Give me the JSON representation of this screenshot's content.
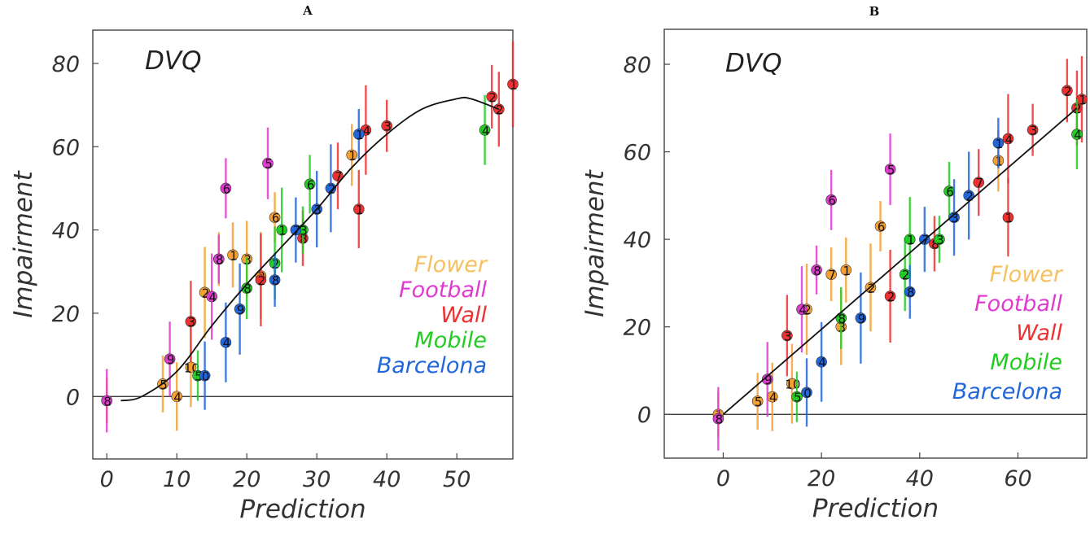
{
  "figure": {
    "panels": [
      {
        "letter": "A",
        "method": "DVQ",
        "xlabel": "Prediction",
        "ylabel": "Impairment"
      },
      {
        "letter": "B",
        "method": "DVQ",
        "xlabel": "Prediction",
        "ylabel": "Impairment"
      }
    ],
    "legend": [
      {
        "name": "Flower",
        "color": "#f5c060"
      },
      {
        "name": "Football",
        "color": "#e03ad0"
      },
      {
        "name": "Wall",
        "color": "#ef3030"
      },
      {
        "name": "Mobile",
        "color": "#22cc22"
      },
      {
        "name": "Barcelona",
        "color": "#2266dd"
      }
    ]
  },
  "chart_data": [
    {
      "type": "scatter",
      "panel": "A",
      "title": "DVQ",
      "xlabel": "Prediction",
      "ylabel": "Impairment",
      "xlim": [
        -2,
        58
      ],
      "ylim": [
        -15,
        88
      ],
      "xticks": [
        0,
        10,
        20,
        30,
        40,
        50
      ],
      "yticks": [
        0,
        20,
        40,
        60,
        80
      ],
      "grid": false,
      "legend_position": "right",
      "reference_line_y": 0,
      "fit_curve": {
        "x": [
          2,
          5,
          10,
          15,
          20,
          25,
          30,
          35,
          40,
          45,
          50,
          52,
          56
        ],
        "y": [
          -1,
          0,
          6,
          17,
          27,
          36,
          45,
          55,
          63,
          69,
          71.5,
          71.5,
          69
        ]
      },
      "series": [
        {
          "name": "Flower",
          "color": "#f5a030",
          "points": [
            {
              "x": 0,
              "y": -1,
              "label": "1"
            },
            {
              "x": 8,
              "y": 3,
              "label": "5"
            },
            {
              "x": 10,
              "y": 0,
              "label": "4"
            },
            {
              "x": 12,
              "y": 7,
              "label": "10"
            },
            {
              "x": 14,
              "y": 25,
              "label": "2"
            },
            {
              "x": 16,
              "y": 33,
              "label": "7"
            },
            {
              "x": 18,
              "y": 34,
              "label": "1"
            },
            {
              "x": 20,
              "y": 33,
              "label": "3"
            },
            {
              "x": 22,
              "y": 29,
              "label": "2"
            },
            {
              "x": 24,
              "y": 43,
              "label": "6"
            },
            {
              "x": 35,
              "y": 58,
              "label": "1"
            }
          ]
        },
        {
          "name": "Football",
          "color": "#e03ad0",
          "points": [
            {
              "x": 0,
              "y": -1,
              "label": "8"
            },
            {
              "x": 9,
              "y": 9,
              "label": "9"
            },
            {
              "x": 15,
              "y": 24,
              "label": "4"
            },
            {
              "x": 16,
              "y": 33,
              "label": "8"
            },
            {
              "x": 17,
              "y": 50,
              "label": "6"
            },
            {
              "x": 23,
              "y": 56,
              "label": "5"
            }
          ]
        },
        {
          "name": "Wall",
          "color": "#ef3030",
          "points": [
            {
              "x": 12,
              "y": 18,
              "label": "3"
            },
            {
              "x": 22,
              "y": 28,
              "label": "2"
            },
            {
              "x": 28,
              "y": 38,
              "label": "8"
            },
            {
              "x": 33,
              "y": 53,
              "label": "7"
            },
            {
              "x": 36,
              "y": 45,
              "label": "1"
            },
            {
              "x": 37,
              "y": 64,
              "label": "4"
            },
            {
              "x": 40,
              "y": 65,
              "label": "3"
            },
            {
              "x": 55,
              "y": 72,
              "label": "2"
            },
            {
              "x": 56,
              "y": 69,
              "label": "2"
            },
            {
              "x": 58,
              "y": 75,
              "label": "1"
            }
          ]
        },
        {
          "name": "Mobile",
          "color": "#22cc22",
          "points": [
            {
              "x": 13,
              "y": 5,
              "label": "5"
            },
            {
              "x": 20,
              "y": 26,
              "label": "8"
            },
            {
              "x": 24,
              "y": 32,
              "label": "2"
            },
            {
              "x": 25,
              "y": 40,
              "label": "1"
            },
            {
              "x": 28,
              "y": 40,
              "label": "3"
            },
            {
              "x": 29,
              "y": 51,
              "label": "6"
            },
            {
              "x": 54,
              "y": 64,
              "label": "4"
            }
          ]
        },
        {
          "name": "Barcelona",
          "color": "#2266dd",
          "points": [
            {
              "x": 14,
              "y": 5,
              "label": "0"
            },
            {
              "x": 17,
              "y": 13,
              "label": "4"
            },
            {
              "x": 19,
              "y": 21,
              "label": "9"
            },
            {
              "x": 24,
              "y": 28,
              "label": "8"
            },
            {
              "x": 27,
              "y": 40,
              "label": "7"
            },
            {
              "x": 30,
              "y": 45,
              "label": "3"
            },
            {
              "x": 32,
              "y": 50,
              "label": "2"
            },
            {
              "x": 36,
              "y": 63,
              "label": "1"
            }
          ]
        }
      ]
    },
    {
      "type": "scatter",
      "panel": "B",
      "title": "DVQ",
      "xlabel": "Prediction",
      "ylabel": "Impairment",
      "xlim": [
        -12,
        74
      ],
      "ylim": [
        -10,
        88
      ],
      "xticks": [
        0,
        20,
        40,
        60
      ],
      "yticks": [
        0,
        20,
        40,
        60,
        80
      ],
      "grid": false,
      "legend_position": "right",
      "reference_line_y": 0,
      "fit_curve": {
        "x": [
          0,
          72
        ],
        "y": [
          0,
          70
        ]
      },
      "series": [
        {
          "name": "Flower",
          "color": "#f5a030",
          "points": [
            {
              "x": -1,
              "y": 0,
              "label": "1"
            },
            {
              "x": 7,
              "y": 3,
              "label": "5"
            },
            {
              "x": 10,
              "y": 4,
              "label": "4"
            },
            {
              "x": 14,
              "y": 7,
              "label": "10"
            },
            {
              "x": 17,
              "y": 24,
              "label": "2"
            },
            {
              "x": 22,
              "y": 32,
              "label": "7"
            },
            {
              "x": 25,
              "y": 33,
              "label": "1"
            },
            {
              "x": 24,
              "y": 20,
              "label": "3"
            },
            {
              "x": 30,
              "y": 29,
              "label": "2"
            },
            {
              "x": 32,
              "y": 43,
              "label": "6"
            },
            {
              "x": 56,
              "y": 58,
              "label": "1"
            }
          ]
        },
        {
          "name": "Football",
          "color": "#e03ad0",
          "points": [
            {
              "x": -1,
              "y": -1,
              "label": "8"
            },
            {
              "x": 9,
              "y": 8,
              "label": "9"
            },
            {
              "x": 16,
              "y": 24,
              "label": "4"
            },
            {
              "x": 19,
              "y": 33,
              "label": "8"
            },
            {
              "x": 22,
              "y": 49,
              "label": "6"
            },
            {
              "x": 34,
              "y": 56,
              "label": "5"
            }
          ]
        },
        {
          "name": "Wall",
          "color": "#ef3030",
          "points": [
            {
              "x": 13,
              "y": 18,
              "label": "3"
            },
            {
              "x": 34,
              "y": 27,
              "label": "2"
            },
            {
              "x": 43,
              "y": 39,
              "label": "8"
            },
            {
              "x": 52,
              "y": 53,
              "label": "7"
            },
            {
              "x": 58,
              "y": 45,
              "label": "1"
            },
            {
              "x": 58,
              "y": 63,
              "label": "4"
            },
            {
              "x": 63,
              "y": 65,
              "label": "3"
            },
            {
              "x": 70,
              "y": 74,
              "label": "2"
            },
            {
              "x": 72,
              "y": 70,
              "label": "2"
            },
            {
              "x": 73,
              "y": 72,
              "label": "1"
            }
          ]
        },
        {
          "name": "Mobile",
          "color": "#22cc22",
          "points": [
            {
              "x": 15,
              "y": 4,
              "label": "5"
            },
            {
              "x": 24,
              "y": 22,
              "label": "8"
            },
            {
              "x": 37,
              "y": 32,
              "label": "2"
            },
            {
              "x": 38,
              "y": 40,
              "label": "1"
            },
            {
              "x": 44,
              "y": 40,
              "label": "3"
            },
            {
              "x": 46,
              "y": 51,
              "label": "6"
            },
            {
              "x": 72,
              "y": 64,
              "label": "4"
            }
          ]
        },
        {
          "name": "Barcelona",
          "color": "#2266dd",
          "points": [
            {
              "x": 17,
              "y": 5,
              "label": "0"
            },
            {
              "x": 20,
              "y": 12,
              "label": "4"
            },
            {
              "x": 28,
              "y": 22,
              "label": "9"
            },
            {
              "x": 38,
              "y": 28,
              "label": "8"
            },
            {
              "x": 41,
              "y": 40,
              "label": "7"
            },
            {
              "x": 47,
              "y": 45,
              "label": "3"
            },
            {
              "x": 50,
              "y": 50,
              "label": "2"
            },
            {
              "x": 56,
              "y": 62,
              "label": "1"
            }
          ]
        }
      ]
    }
  ]
}
